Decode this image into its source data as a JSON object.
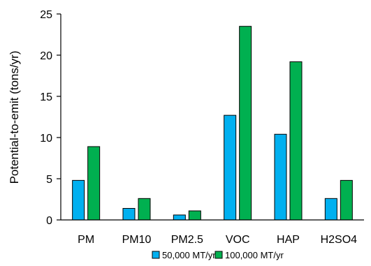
{
  "chart_data": {
    "type": "bar",
    "title": "",
    "xlabel": "",
    "ylabel": "Potential-to-emit (tons/yr)",
    "ylim": [
      0,
      25
    ],
    "yticks": [
      0,
      5,
      10,
      15,
      20,
      25
    ],
    "grid": false,
    "legend_position": "bottom",
    "categories": [
      "PM",
      "PM10",
      "PM2.5",
      "VOC",
      "HAP",
      "H2SO4"
    ],
    "series": [
      {
        "name": "50,000 MT/yr",
        "color": "#00b0f0",
        "values": [
          4.8,
          1.4,
          0.6,
          12.7,
          10.4,
          2.6
        ]
      },
      {
        "name": "100,000  MT/yr",
        "color": "#00b050",
        "values": [
          8.9,
          2.6,
          1.1,
          23.5,
          19.2,
          4.8
        ]
      }
    ]
  }
}
